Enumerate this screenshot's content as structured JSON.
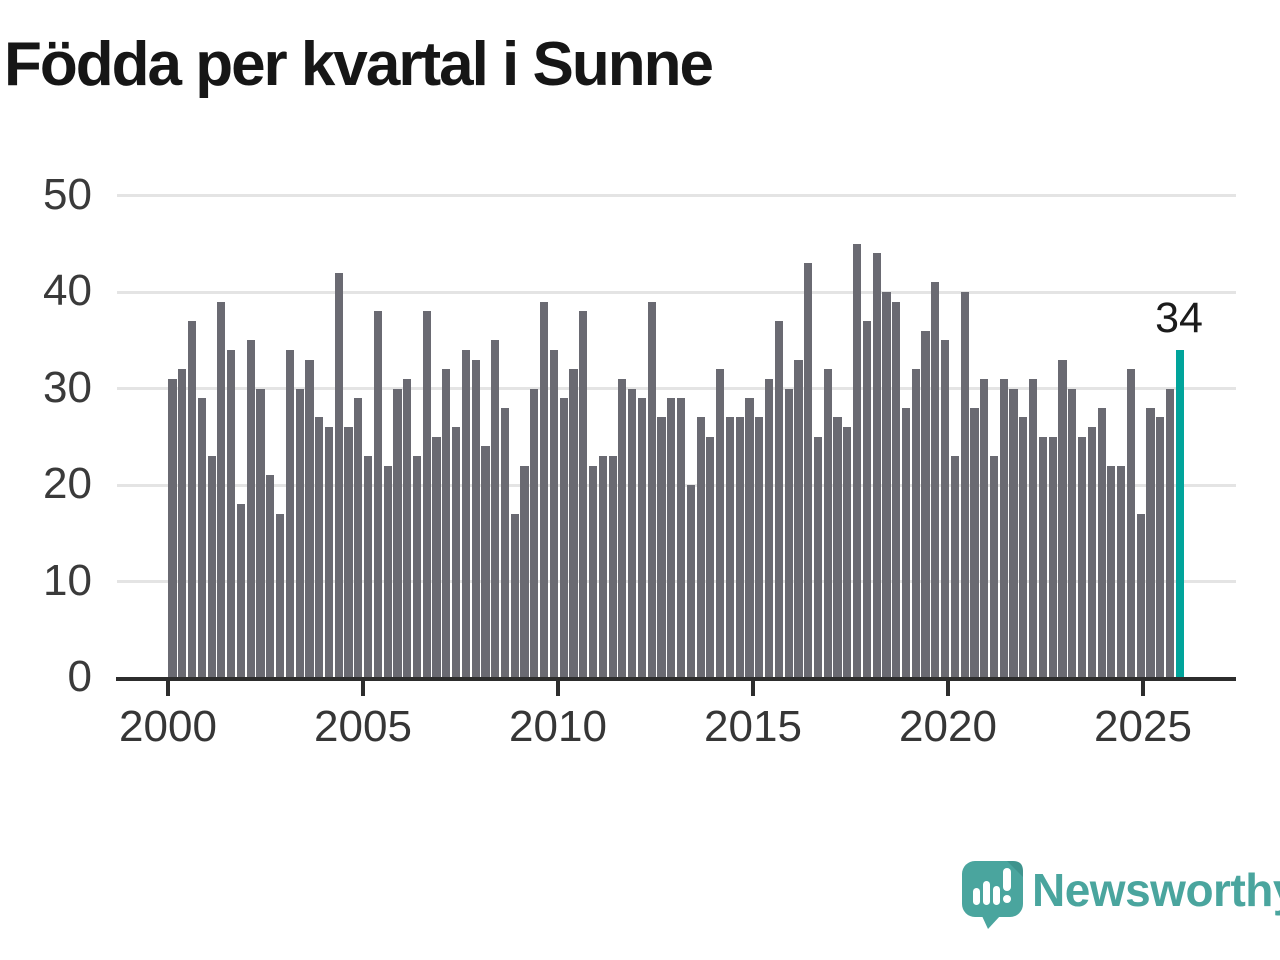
{
  "title": "Födda per kvartal i Sunne",
  "chart_data": {
    "type": "bar",
    "title": "Födda per kvartal i Sunne",
    "start_period": "2000 Q1",
    "end_period": "2025 Q4",
    "x_tick_labels": [
      "2000",
      "2005",
      "2010",
      "2015",
      "2020",
      "2025"
    ],
    "y_ticks": [
      0,
      10,
      20,
      30,
      40,
      50
    ],
    "ylim": [
      0,
      50
    ],
    "grid": true,
    "legend": "none",
    "values": [
      31,
      32,
      37,
      29,
      23,
      39,
      34,
      18,
      35,
      30,
      21,
      17,
      34,
      30,
      33,
      27,
      26,
      42,
      26,
      29,
      23,
      38,
      22,
      30,
      31,
      23,
      38,
      25,
      32,
      26,
      34,
      33,
      24,
      35,
      28,
      17,
      22,
      30,
      39,
      34,
      29,
      32,
      38,
      22,
      23,
      23,
      31,
      30,
      29,
      39,
      27,
      29,
      29,
      20,
      27,
      25,
      32,
      27,
      27,
      29,
      27,
      31,
      37,
      30,
      33,
      43,
      25,
      32,
      27,
      26,
      45,
      37,
      44,
      40,
      39,
      28,
      32,
      36,
      41,
      35,
      23,
      40,
      28,
      31,
      23,
      31,
      30,
      27,
      31,
      25,
      25,
      33,
      30,
      25,
      26,
      28,
      22,
      22,
      32,
      17,
      28,
      27,
      30,
      34
    ],
    "highlight_last": {
      "value": 34,
      "label": "34"
    }
  },
  "colors": {
    "bar": "#6a6a72",
    "highlight": "#00a49b",
    "grid": "#e4e4e4",
    "axis": "#2d2d2d",
    "title_text": "#161616",
    "tick_text": "#363636",
    "annotation_text": "#1b1b1b",
    "logo_teal": "#4aa59e"
  },
  "annotation": {
    "label": "34"
  },
  "logo": {
    "text": "Newsworthy",
    "icon": "speech-bubble-bar-chart-icon"
  }
}
